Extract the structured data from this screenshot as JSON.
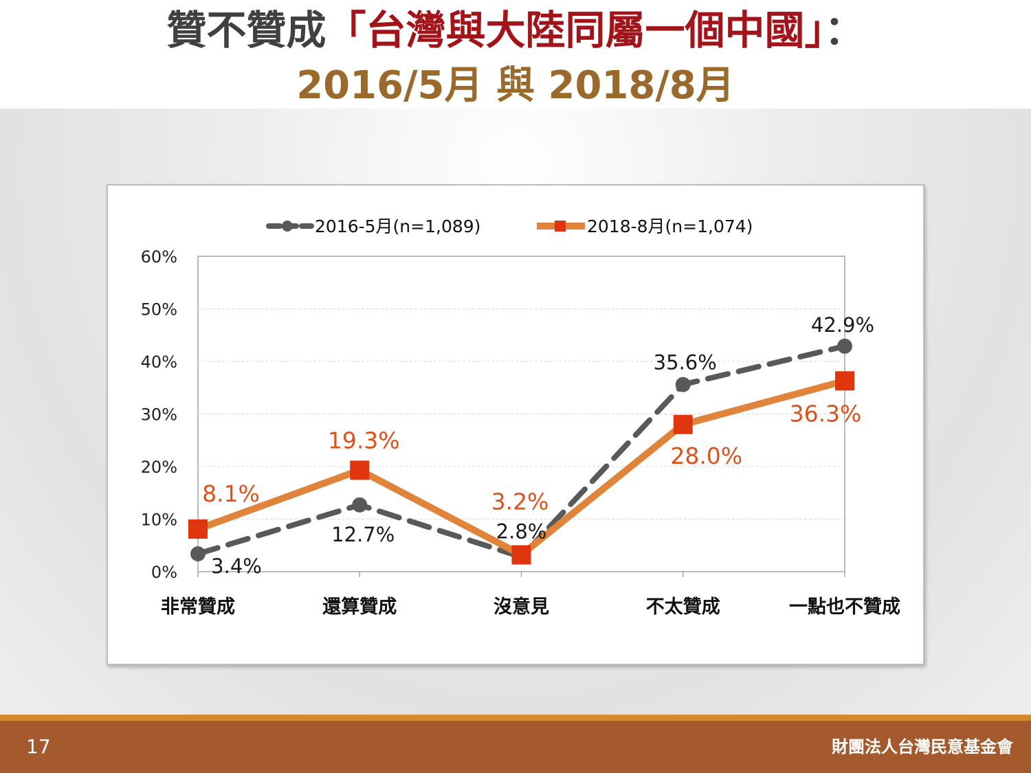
{
  "slide": {
    "title_prefix": "贊不贊成",
    "title_highlight": "「台灣與大陸同屬一個中國」",
    "title_suffix": "：",
    "subtitle": "2016/5月 與 2018/8月",
    "page_number": "17",
    "organization": "財團法人台灣民意基金會"
  },
  "chart_data": {
    "type": "line",
    "categories": [
      "非常贊成",
      "還算贊成",
      "沒意見",
      "不太贊成",
      "一點也不贊成"
    ],
    "series": [
      {
        "name": "2016-5月(n=1,089)",
        "values": [
          3.4,
          12.7,
          2.8,
          35.6,
          42.9
        ],
        "labels": [
          "3.4%",
          "12.7%",
          "2.8%",
          "35.6%",
          "42.9%"
        ],
        "color": "#595959",
        "style": "dashed",
        "marker": "circle"
      },
      {
        "name": "2018-8月(n=1,074)",
        "values": [
          8.1,
          19.3,
          3.2,
          28.0,
          36.3
        ],
        "labels": [
          "8.1%",
          "19.3%",
          "3.2%",
          "28.0%",
          "36.3%"
        ],
        "color": "#e0843c",
        "marker_color": "#e0360f",
        "label_color": "#e0501a",
        "style": "solid",
        "marker": "square"
      }
    ],
    "yticks": [
      "0%",
      "10%",
      "20%",
      "30%",
      "40%",
      "50%",
      "60%"
    ],
    "ylim": [
      0,
      60
    ],
    "grid": true,
    "legend_position": "top"
  }
}
